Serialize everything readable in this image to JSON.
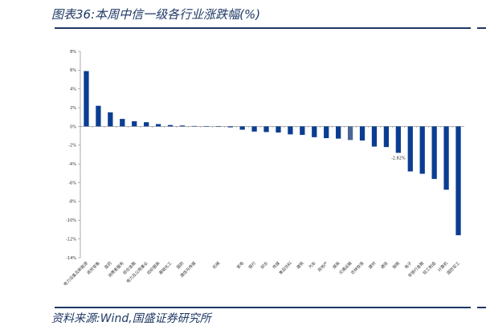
{
  "header": {
    "title": "图表36:本周中信一级各行业涨跌幅(%)"
  },
  "footer": {
    "source": "资料来源:Wind,国盛证券研究所"
  },
  "chart_data": {
    "type": "bar",
    "title": "",
    "xlabel": "",
    "ylabel": "",
    "ylim": [
      -14,
      8
    ],
    "yticks": [
      8,
      6,
      4,
      2,
      0,
      -2,
      -4,
      -6,
      -8,
      -10,
      -12,
      -14
    ],
    "ytick_labels": [
      "8%",
      "6%",
      "4%",
      "2%",
      "0%",
      "-2%",
      "-4%",
      "-6%",
      "-8%",
      "-10%",
      "-12%",
      "-14%"
    ],
    "categories": [
      "电力设备及新能源",
      "商贸零售",
      "医药",
      "消费者服务",
      "综合金融",
      "电力及公用事业",
      "纺织服装",
      "基础化工",
      "国防",
      "通信与传媒",
      "",
      "机械",
      "",
      "家电",
      "银行",
      "综合",
      "传媒",
      "食品饮料",
      "建筑",
      "汽车",
      "房地产",
      "煤炭",
      "交通运输",
      "农林牧渔",
      "建材",
      "通信",
      "钢铁",
      "电子",
      "非银行金融",
      "轻工制造",
      "计算机",
      "国防军工"
    ],
    "values": [
      5.9,
      2.2,
      1.5,
      0.8,
      0.55,
      0.45,
      0.25,
      0.15,
      0.1,
      0.05,
      0.02,
      0.0,
      -0.1,
      -0.35,
      -0.55,
      -0.6,
      -0.65,
      -0.85,
      -0.9,
      -1.15,
      -1.25,
      -1.3,
      -1.45,
      -1.5,
      -2.15,
      -2.2,
      -2.82,
      -4.8,
      -5.05,
      -5.6,
      -6.75,
      -11.6
    ],
    "highlight_color_index": 22,
    "data_labels": [
      {
        "index": 26,
        "text": "-2.82%"
      }
    ],
    "colors": {
      "bar": "#0b3d91",
      "highlight": "#4a6596",
      "axis": "#888888"
    }
  }
}
